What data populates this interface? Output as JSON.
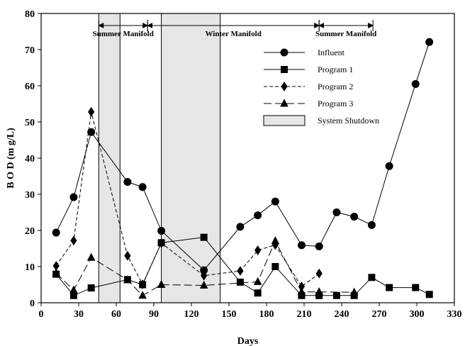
{
  "chart_data": {
    "type": "line",
    "xlabel": "Days",
    "ylabel": "B O D  (m g/L)",
    "xlim": [
      0,
      330
    ],
    "ylim": [
      0,
      80
    ],
    "xticks": [
      "0",
      "30",
      "60",
      "90",
      "120",
      "150",
      "180",
      "210",
      "240",
      "270",
      "300",
      "330"
    ],
    "yticks": [
      "0",
      "10",
      "20",
      "30",
      "40",
      "50",
      "60",
      "70",
      "80"
    ],
    "grid": false,
    "legend_position": "top-right",
    "series": [
      {
        "name": "Influent",
        "marker": "circle",
        "dash": "solid",
        "x": [
          12,
          26,
          40,
          69,
          81,
          96,
          130,
          159,
          173,
          187,
          208,
          222,
          236,
          250,
          264,
          278,
          299,
          310
        ],
        "y": [
          19.4,
          29.2,
          47.2,
          33.4,
          32.0,
          19.9,
          9.0,
          21.0,
          24.2,
          28.0,
          15.9,
          15.6,
          25.0,
          23.8,
          21.5,
          37.8,
          60.5,
          72.1
        ]
      },
      {
        "name": "Program 1",
        "marker": "square",
        "dash": "solid",
        "x": [
          12,
          26,
          40,
          69,
          81,
          96,
          130,
          159,
          173,
          187,
          208,
          222,
          236,
          250,
          264,
          278,
          299,
          310
        ],
        "y": [
          7.9,
          2.0,
          4.1,
          6.4,
          5.0,
          16.6,
          18.1,
          5.7,
          2.7,
          10.0,
          2.0,
          2.0,
          2.0,
          2.0,
          7.0,
          4.2,
          4.2,
          2.3
        ]
      },
      {
        "name": "Program 2",
        "marker": "diamond",
        "dash": "short-dash",
        "x": [
          12,
          26,
          40,
          69,
          81,
          96,
          130,
          159,
          173,
          187,
          208,
          222
        ],
        "y": [
          10.2,
          17.2,
          52.8,
          13.0,
          5.1,
          16.5,
          7.5,
          8.8,
          14.5,
          16.0,
          4.5,
          8.1
        ]
      },
      {
        "name": "Program 3",
        "marker": "triangle",
        "dash": "long-dash",
        "x": [
          12,
          26,
          40,
          69,
          81,
          96,
          130,
          173,
          187,
          208,
          222,
          250
        ],
        "y": [
          8.2,
          3.5,
          12.5,
          6.3,
          2.0,
          5.0,
          4.8,
          5.8,
          17.1,
          3.0,
          3.0,
          2.9
        ]
      }
    ],
    "shaded_regions": [
      {
        "x0": 46,
        "x1": 63
      },
      {
        "x0": 96,
        "x1": 143
      }
    ],
    "shaded_legend_label": "System Shutdown",
    "annotations": [
      {
        "label": "Summer Manifold",
        "x0": 46,
        "x1": 85
      },
      {
        "label": "Winter Manifold",
        "x0": 85,
        "x1": 222
      },
      {
        "label": "Summer Manifold",
        "x0": 222,
        "x1": 265
      }
    ]
  }
}
